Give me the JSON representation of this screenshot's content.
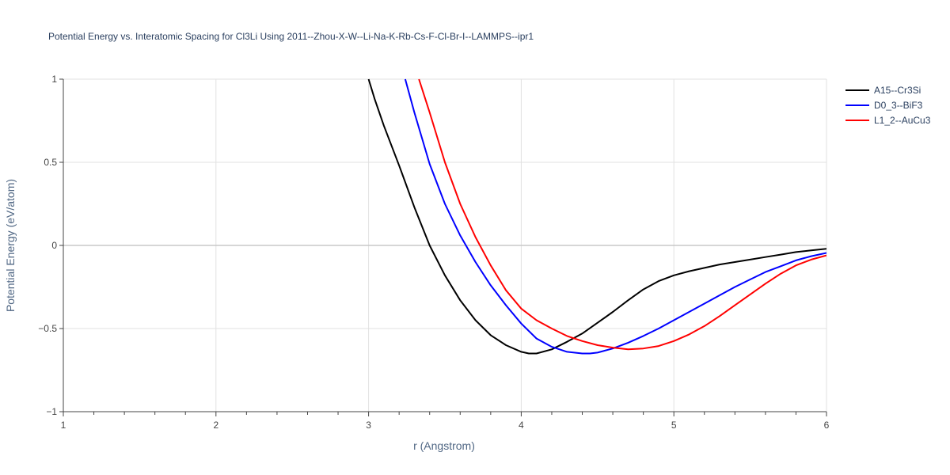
{
  "chart_data": {
    "type": "line",
    "title": "Potential Energy vs. Interatomic Spacing for Cl3Li Using 2011--Zhou-X-W--Li-Na-K-Rb-Cs-F-Cl-Br-I--LAMMPS--ipr1",
    "xlabel": "r (Angstrom)",
    "ylabel": "Potential Energy (eV/atom)",
    "xlim": [
      1,
      6
    ],
    "ylim": [
      -1,
      1
    ],
    "xticks": [
      1,
      2,
      3,
      4,
      5,
      6
    ],
    "xtick_labels": [
      "1",
      "2",
      "3",
      "4",
      "5",
      "6"
    ],
    "yticks": [
      -1,
      -0.5,
      0,
      0.5,
      1
    ],
    "ytick_labels": [
      "−1",
      "−0.5",
      "0",
      "0.5",
      "1"
    ],
    "grid": true,
    "legend_position": "top-right",
    "series": [
      {
        "name": "A15--Cr3Si",
        "color": "#000000",
        "x": [
          3.0,
          3.04,
          3.1,
          3.2,
          3.3,
          3.4,
          3.5,
          3.6,
          3.7,
          3.8,
          3.9,
          4.0,
          4.05,
          4.1,
          4.2,
          4.3,
          4.4,
          4.5,
          4.6,
          4.7,
          4.8,
          4.9,
          5.0,
          5.1,
          5.2,
          5.3,
          5.4,
          5.5,
          5.6,
          5.7,
          5.8,
          5.9,
          6.0
        ],
        "y": [
          1.0,
          0.88,
          0.72,
          0.48,
          0.23,
          0.0,
          -0.18,
          -0.33,
          -0.45,
          -0.54,
          -0.6,
          -0.64,
          -0.65,
          -0.65,
          -0.625,
          -0.58,
          -0.53,
          -0.465,
          -0.4,
          -0.33,
          -0.265,
          -0.215,
          -0.18,
          -0.155,
          -0.135,
          -0.115,
          -0.1,
          -0.085,
          -0.07,
          -0.055,
          -0.04,
          -0.03,
          -0.02
        ]
      },
      {
        "name": "D0_3--BiF3",
        "color": "#0000ff",
        "x": [
          3.24,
          3.3,
          3.4,
          3.5,
          3.6,
          3.7,
          3.8,
          3.9,
          4.0,
          4.1,
          4.2,
          4.3,
          4.4,
          4.45,
          4.5,
          4.6,
          4.7,
          4.8,
          4.9,
          5.0,
          5.1,
          5.2,
          5.3,
          5.4,
          5.5,
          5.6,
          5.7,
          5.8,
          5.9,
          6.0
        ],
        "y": [
          1.0,
          0.8,
          0.49,
          0.25,
          0.06,
          -0.1,
          -0.24,
          -0.36,
          -0.47,
          -0.56,
          -0.61,
          -0.64,
          -0.65,
          -0.65,
          -0.645,
          -0.62,
          -0.585,
          -0.545,
          -0.5,
          -0.45,
          -0.4,
          -0.35,
          -0.3,
          -0.25,
          -0.205,
          -0.16,
          -0.125,
          -0.09,
          -0.065,
          -0.045
        ]
      },
      {
        "name": "L1_2--AuCu3",
        "color": "#ff0000",
        "x": [
          3.33,
          3.4,
          3.5,
          3.6,
          3.7,
          3.8,
          3.9,
          4.0,
          4.1,
          4.2,
          4.3,
          4.4,
          4.5,
          4.6,
          4.7,
          4.8,
          4.9,
          5.0,
          5.1,
          5.2,
          5.3,
          5.4,
          5.5,
          5.6,
          5.7,
          5.8,
          5.9,
          6.0
        ],
        "y": [
          1.0,
          0.8,
          0.5,
          0.25,
          0.05,
          -0.12,
          -0.27,
          -0.38,
          -0.45,
          -0.5,
          -0.545,
          -0.575,
          -0.6,
          -0.615,
          -0.625,
          -0.62,
          -0.605,
          -0.575,
          -0.535,
          -0.485,
          -0.425,
          -0.36,
          -0.295,
          -0.23,
          -0.17,
          -0.12,
          -0.085,
          -0.06
        ]
      }
    ]
  }
}
